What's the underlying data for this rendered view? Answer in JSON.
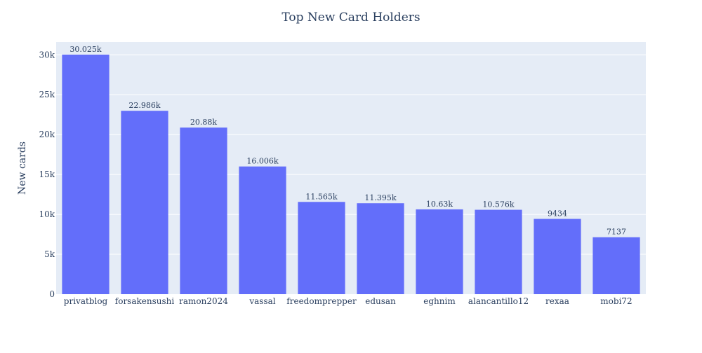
{
  "chart_data": {
    "type": "bar",
    "title": "Top New Card Holders",
    "xlabel": "",
    "ylabel": "New cards",
    "categories": [
      "privatblog",
      "forsakensushi",
      "ramon2024",
      "vassal",
      "freedomprepper",
      "edusan",
      "eghnim",
      "alancantillo12",
      "rexaa",
      "mobi72"
    ],
    "values": [
      30025,
      22986,
      20880,
      16006,
      11565,
      11395,
      10630,
      10576,
      9434,
      7137
    ],
    "value_labels": [
      "30.025k",
      "22.986k",
      "20.88k",
      "16.006k",
      "11.565k",
      "11.395k",
      "10.63k",
      "10.576k",
      "9434",
      "7137"
    ],
    "ylim": [
      0,
      31605
    ],
    "yticks": [
      0,
      5000,
      10000,
      15000,
      20000,
      25000,
      30000
    ],
    "ytick_labels": [
      "0",
      "5k",
      "10k",
      "15k",
      "20k",
      "25k",
      "30k"
    ],
    "grid": true,
    "colors": {
      "bar": "#636efa",
      "plot_bg": "#e5ecf6",
      "grid": "#ffffff",
      "text": "#2a3f5f"
    }
  }
}
